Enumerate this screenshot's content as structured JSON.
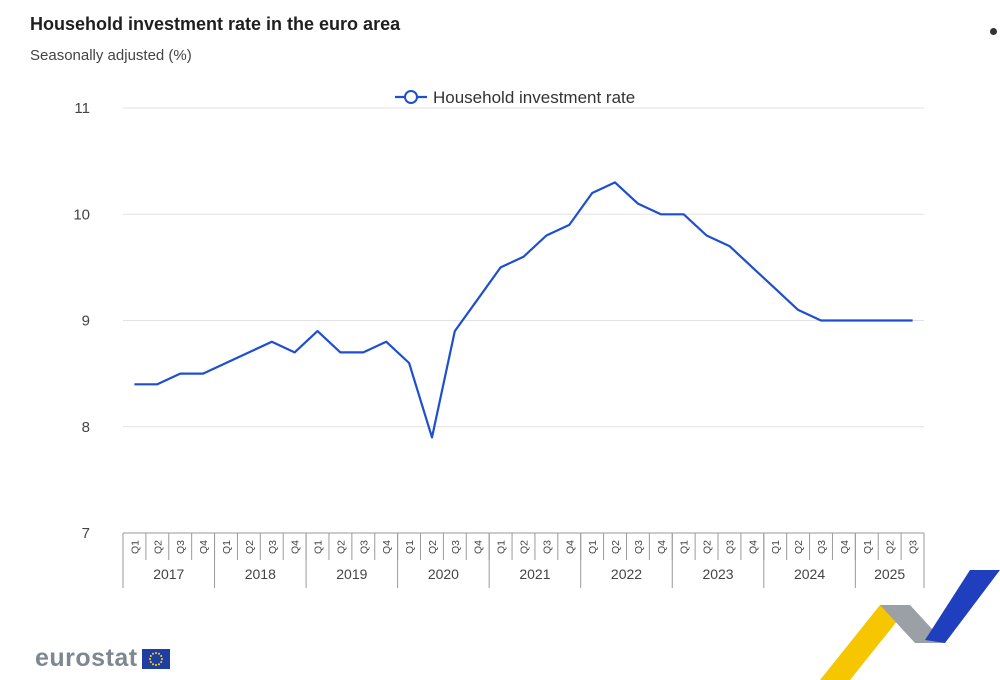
{
  "header": {
    "title": "Household investment rate in the euro area",
    "subtitle": "Seasonally adjusted (%)"
  },
  "branding": {
    "logo_text": "eurostat",
    "flag_icon": "eu-flag-icon"
  },
  "colors": {
    "series": "#1f4fd0",
    "grid": "#e2e2e2",
    "axis_text": "#444444",
    "deco_yellow": "#f6c700",
    "deco_blue": "#1f3fbf",
    "deco_grey": "#9aa0a6"
  },
  "chart_data": {
    "type": "line",
    "title": "Household investment rate in the euro area",
    "subtitle": "Seasonally adjusted (%)",
    "xlabel": "",
    "ylabel": "",
    "ylim": [
      7,
      11
    ],
    "yticks": [
      "7",
      "8",
      "9",
      "10",
      "11"
    ],
    "grid": true,
    "legend_position": "top-center",
    "years": [
      {
        "year": "2017",
        "quarters": [
          "Q1",
          "Q2",
          "Q3",
          "Q4"
        ]
      },
      {
        "year": "2018",
        "quarters": [
          "Q1",
          "Q2",
          "Q3",
          "Q4"
        ]
      },
      {
        "year": "2019",
        "quarters": [
          "Q1",
          "Q2",
          "Q3",
          "Q4"
        ]
      },
      {
        "year": "2020",
        "quarters": [
          "Q1",
          "Q2",
          "Q3",
          "Q4"
        ]
      },
      {
        "year": "2021",
        "quarters": [
          "Q1",
          "Q2",
          "Q3",
          "Q4"
        ]
      },
      {
        "year": "2022",
        "quarters": [
          "Q1",
          "Q2",
          "Q3",
          "Q4"
        ]
      },
      {
        "year": "2023",
        "quarters": [
          "Q1",
          "Q2",
          "Q3",
          "Q4"
        ]
      },
      {
        "year": "2024",
        "quarters": [
          "Q1",
          "Q2",
          "Q3",
          "Q4"
        ]
      },
      {
        "year": "2025",
        "quarters": [
          "Q1",
          "Q2",
          "Q3"
        ]
      }
    ],
    "series": [
      {
        "name": "Household investment rate",
        "values": [
          8.4,
          8.4,
          8.5,
          8.5,
          8.6,
          8.7,
          8.8,
          8.7,
          8.9,
          8.7,
          8.7,
          8.8,
          8.6,
          7.9,
          8.9,
          9.2,
          9.5,
          9.6,
          9.8,
          9.9,
          10.2,
          10.3,
          10.1,
          10.0,
          10.0,
          9.8,
          9.7,
          9.5,
          9.3,
          9.1,
          9.0,
          9.0,
          9.0,
          9.0,
          9.0
        ]
      }
    ]
  }
}
